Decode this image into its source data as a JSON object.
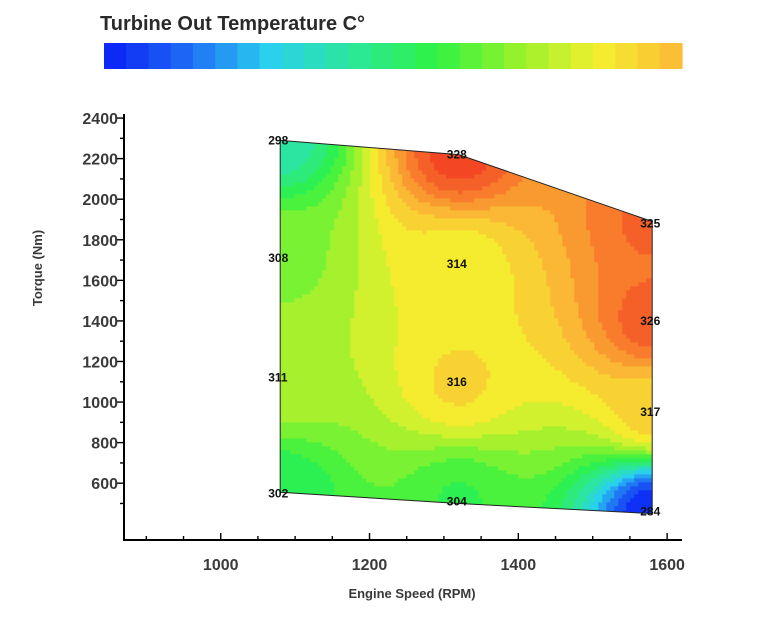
{
  "chart_data": {
    "type": "heatmap",
    "title": "Turbine Out Temperature C°",
    "xlabel": "Engine Speed (RPM)",
    "ylabel": "Torque (Nm)",
    "xlim": [
      870,
      1620
    ],
    "ylim": [
      320,
      2420
    ],
    "x_ticks": [
      1000,
      1200,
      1400,
      1600
    ],
    "y_ticks": [
      600,
      800,
      1000,
      1200,
      1400,
      1600,
      1800,
      2000,
      2200,
      2400
    ],
    "grid": false,
    "colorbar": {
      "position": "top",
      "range": [
        280,
        332
      ],
      "colors": [
        "#0a1ff5",
        "#1e6af5",
        "#2ad0ee",
        "#2be79b",
        "#2ef244",
        "#95f22c",
        "#f5ef2f",
        "#fbb735"
      ]
    },
    "contour_colors": [
      "#0a1ff5",
      "#1e6af5",
      "#2ad0ee",
      "#2be79b",
      "#2ef244",
      "#95f22c",
      "#f5ef2f",
      "#fbb735",
      "#f7732b",
      "#f23a22"
    ],
    "contour_range": [
      284,
      329
    ],
    "points": [
      {
        "x": 1080,
        "y": 2290,
        "value": 298,
        "label": "298"
      },
      {
        "x": 1080,
        "y": 1710,
        "value": 308,
        "label": "308"
      },
      {
        "x": 1080,
        "y": 1120,
        "value": 311,
        "label": "311"
      },
      {
        "x": 1080,
        "y": 550,
        "value": 302,
        "label": "302"
      },
      {
        "x": 1320,
        "y": 2220,
        "value": 328,
        "label": "328"
      },
      {
        "x": 1320,
        "y": 1680,
        "value": 314,
        "label": "314"
      },
      {
        "x": 1320,
        "y": 1100,
        "value": 316,
        "label": "316"
      },
      {
        "x": 1320,
        "y": 510,
        "value": 304,
        "label": "304"
      },
      {
        "x": 1580,
        "y": 1880,
        "value": 325,
        "label": "325"
      },
      {
        "x": 1580,
        "y": 1400,
        "value": 326,
        "label": "326"
      },
      {
        "x": 1580,
        "y": 950,
        "value": 317,
        "label": "317"
      },
      {
        "x": 1580,
        "y": 460,
        "value": 284,
        "label": "284"
      }
    ],
    "region_outline": [
      {
        "x": 1080,
        "y": 2290
      },
      {
        "x": 1320,
        "y": 2220
      },
      {
        "x": 1580,
        "y": 1890
      },
      {
        "x": 1580,
        "y": 450
      },
      {
        "x": 1320,
        "y": 500
      },
      {
        "x": 1080,
        "y": 555
      }
    ]
  }
}
